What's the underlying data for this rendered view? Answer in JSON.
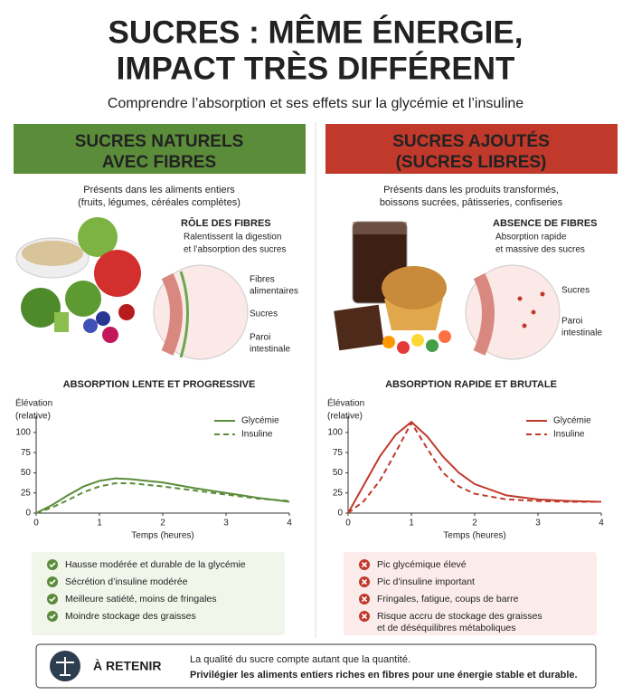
{
  "header": {
    "title": [
      "SUCRES : MÊME ÉNERGIE,",
      "IMPACT TRÈS DIFFÉRENT"
    ],
    "subtitle": "Comprendre l’absorption et ses effets sur la glycémie et l’insuline"
  },
  "panels": [
    {
      "color": "#5b8c3a",
      "light": "#f1f5ea",
      "heading": [
        "SUCRES NATURELS",
        "AVEC FIBRES"
      ],
      "description": [
        "Présents dans les aliments entiers",
        "(fruits, légumes, céréales complètes)"
      ],
      "fiber_title": "RÔLE DES FIBRES",
      "fiber_text": [
        "Ralentissent la digestion",
        "et l’absorption des sucres"
      ],
      "diagram_labels": [
        [
          "Fibres",
          "alimentaires"
        ],
        [
          "Sucres"
        ],
        [
          "Paroi",
          "intestinale"
        ]
      ],
      "bullets": [
        [
          "Hausse modérée et durable de la glycémie"
        ],
        [
          "Sécrétion d’insuline modérée"
        ],
        [
          "Meilleure satiété, moins de fringales"
        ],
        [
          "Moindre stockage des graisses"
        ]
      ]
    },
    {
      "color": "#c0392b",
      "light": "#fbeceb",
      "heading": [
        "SUCRES AJOUTÉS",
        "(SUCRES LIBRES)"
      ],
      "description": [
        "Présents dans les produits transformés,",
        "boissons sucrées, pâtisseries, confiseries"
      ],
      "fiber_title": "ABSENCE DE FIBRES",
      "fiber_text": [
        "Absorption rapide",
        "et massive des sucres"
      ],
      "diagram_labels": [
        [
          "Sucres"
        ],
        [
          "Paroi",
          "intestinale"
        ]
      ],
      "bullets": [
        [
          "Pic glycémique élevé"
        ],
        [
          "Pic d’insuline important"
        ],
        [
          "Fringales, fatigue, coups de barre"
        ],
        [
          "Risque accru de stockage des graisses",
          "et de déséquilibres métaboliques"
        ]
      ]
    }
  ],
  "chart_data": [
    {
      "type": "line",
      "title": "ABSORPTION LENTE ET PROGRESSIVE",
      "ylabel": [
        "Élévation",
        "(relative)"
      ],
      "xlabel": "Temps (heures)",
      "x": [
        0,
        0.25,
        0.5,
        0.75,
        1,
        1.25,
        1.5,
        1.75,
        2,
        2.5,
        3,
        3.5,
        4
      ],
      "xlim": [
        0,
        4
      ],
      "xticks": [
        0,
        1,
        2,
        3,
        4
      ],
      "ylim": [
        0,
        120
      ],
      "yticks": [
        0,
        25,
        50,
        75,
        100
      ],
      "legend": "upper right",
      "series": [
        {
          "name": "Glycémie",
          "color": "#5b8c3a",
          "style": "solid",
          "values": [
            0,
            10,
            22,
            33,
            40,
            43,
            42,
            40,
            38,
            31,
            25,
            19,
            14
          ]
        },
        {
          "name": "Insuline",
          "color": "#5b8c3a",
          "style": "dashed",
          "values": [
            0,
            7,
            16,
            26,
            33,
            37,
            37,
            35,
            33,
            28,
            23,
            18,
            15
          ]
        }
      ]
    },
    {
      "type": "line",
      "title": "ABSORPTION RAPIDE ET BRUTALE",
      "ylabel": [
        "Élévation",
        "(relative)"
      ],
      "xlabel": "Temps (heures)",
      "x": [
        0,
        0.25,
        0.5,
        0.75,
        1,
        1.25,
        1.5,
        1.75,
        2,
        2.5,
        3,
        3.5,
        4
      ],
      "xlim": [
        0,
        4
      ],
      "xticks": [
        0,
        1,
        2,
        3,
        4
      ],
      "ylim": [
        0,
        120
      ],
      "yticks": [
        0,
        25,
        50,
        75,
        100
      ],
      "legend": "upper right",
      "series": [
        {
          "name": "Glycémie",
          "color": "#c0392b",
          "style": "solid",
          "values": [
            0,
            35,
            70,
            97,
            113,
            95,
            70,
            50,
            36,
            22,
            17,
            15,
            14
          ]
        },
        {
          "name": "Insuline",
          "color": "#c0392b",
          "style": "dashed",
          "values": [
            0,
            15,
            40,
            75,
            112,
            80,
            50,
            33,
            24,
            17,
            15,
            14,
            14
          ]
        }
      ]
    }
  ],
  "takeaway": {
    "label": "À RETENIR",
    "text": "La qualité du sucre compte autant que la quantité.",
    "emphasis": "Privilégier les aliments entiers riches en fibres pour une énergie stable et durable."
  }
}
